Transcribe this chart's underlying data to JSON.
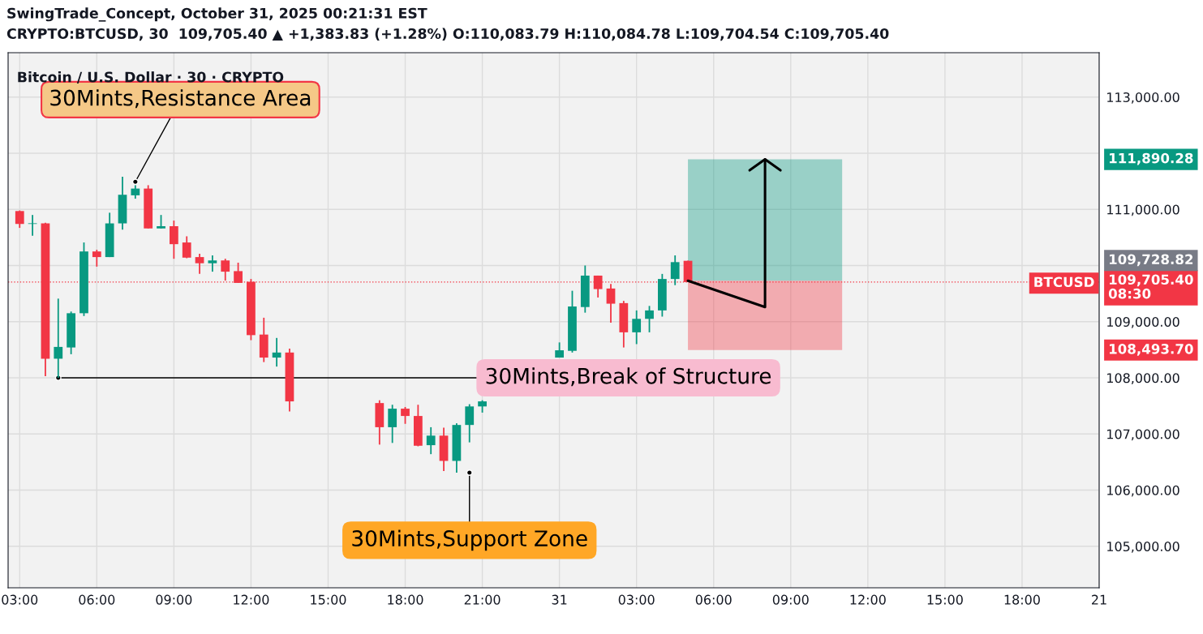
{
  "chart_data": {
    "type": "candlestick",
    "title": "SwingTrade_Concept, October 31, 2025 00:21:31 EST",
    "subtitle": "CRYPTO:BTCUSD, 30  109,705.40 ▲ +1,383.83 (+1.28%) O:110,083.79 H:110,084.78 L:109,704.54 C:109,705.40",
    "x": [
      "2025-10-30T03:00",
      "2025-10-30T03:30",
      "2025-10-30T04:00",
      "2025-10-30T04:30",
      "2025-10-30T05:00",
      "2025-10-30T05:30",
      "2025-10-30T06:00",
      "2025-10-30T06:30",
      "2025-10-30T07:00",
      "2025-10-30T07:30",
      "2025-10-30T08:00",
      "2025-10-30T08:30",
      "2025-10-30T09:00",
      "2025-10-30T09:30",
      "2025-10-30T10:00",
      "2025-10-30T10:30",
      "2025-10-30T11:00",
      "2025-10-30T11:30",
      "2025-10-30T12:00",
      "2025-10-30T12:30",
      "2025-10-30T13:00",
      "2025-10-30T13:30",
      "2025-10-30T17:00",
      "2025-10-30T17:30",
      "2025-10-30T18:00",
      "2025-10-30T18:30",
      "2025-10-30T19:00",
      "2025-10-30T19:30",
      "2025-10-30T20:00",
      "2025-10-30T20:30",
      "2025-10-30T21:00",
      "2025-10-31T00:00",
      "2025-10-31T00:30",
      "2025-10-31T01:00",
      "2025-10-31T01:30",
      "2025-10-31T02:00",
      "2025-10-31T02:30",
      "2025-10-31T03:00",
      "2025-10-31T03:30",
      "2025-10-31T04:00",
      "2025-10-31T04:30",
      "2025-10-31T05:00"
    ],
    "ohlc": [
      [
        110970,
        110980,
        110670,
        110740
      ],
      [
        110740,
        110900,
        110530,
        110750
      ],
      [
        110750,
        110760,
        108030,
        108340
      ],
      [
        108340,
        109410,
        108000,
        108550
      ],
      [
        108540,
        109180,
        108420,
        109150
      ],
      [
        109150,
        110410,
        109100,
        110250
      ],
      [
        110250,
        110280,
        109980,
        110150
      ],
      [
        110150,
        110940,
        110150,
        110750
      ],
      [
        110750,
        111580,
        110640,
        111260
      ],
      [
        111250,
        111430,
        111190,
        111370
      ],
      [
        111370,
        111430,
        110660,
        110660
      ],
      [
        110660,
        110900,
        110660,
        110700
      ],
      [
        110700,
        110800,
        110120,
        110380
      ],
      [
        110410,
        110520,
        110130,
        110140
      ],
      [
        110150,
        110210,
        109850,
        110040
      ],
      [
        110040,
        110180,
        109890,
        110090
      ],
      [
        110090,
        110120,
        109730,
        109890
      ],
      [
        109900,
        110050,
        109690,
        109690
      ],
      [
        109710,
        109760,
        108670,
        108760
      ],
      [
        108770,
        109070,
        108280,
        108360
      ],
      [
        108360,
        108710,
        108200,
        108450
      ],
      [
        108450,
        108520,
        107400,
        107580
      ],
      [
        107550,
        107600,
        106810,
        107120
      ],
      [
        107120,
        107520,
        106840,
        107450
      ],
      [
        107450,
        107480,
        107180,
        107320
      ],
      [
        107320,
        107520,
        106780,
        106790
      ],
      [
        106800,
        107120,
        106640,
        106970
      ],
      [
        106970,
        107110,
        106340,
        106520
      ],
      [
        106520,
        107190,
        106310,
        107160
      ],
      [
        107160,
        107530,
        106850,
        107490
      ],
      [
        107490,
        107600,
        107380,
        107580
      ],
      [
        108360,
        108630,
        108360,
        108490
      ],
      [
        108480,
        109550,
        108450,
        109270
      ],
      [
        109260,
        110000,
        109160,
        109820
      ],
      [
        109820,
        109820,
        109430,
        109580
      ],
      [
        109590,
        109670,
        108980,
        109320
      ],
      [
        109330,
        109370,
        108540,
        108810
      ],
      [
        108810,
        109200,
        108600,
        109050
      ],
      [
        109050,
        109280,
        108810,
        109200
      ],
      [
        109200,
        109850,
        109090,
        109760
      ],
      [
        109760,
        110180,
        109650,
        110060
      ],
      [
        110083.79,
        110084.78,
        109704.54,
        109705.4
      ]
    ],
    "xlim": [
      "2025-10-30T02:33",
      "2025-10-31T21:00"
    ],
    "xticks": [
      {
        "value": "2025-10-30T03:00",
        "label": "03:00"
      },
      {
        "value": "2025-10-30T06:00",
        "label": "06:00"
      },
      {
        "value": "2025-10-30T09:00",
        "label": "09:00"
      },
      {
        "value": "2025-10-30T12:00",
        "label": "12:00"
      },
      {
        "value": "2025-10-30T15:00",
        "label": "15:00"
      },
      {
        "value": "2025-10-30T18:00",
        "label": "18:00"
      },
      {
        "value": "2025-10-30T21:00",
        "label": "21:00"
      },
      {
        "value": "2025-10-31T00:00",
        "label": "31"
      },
      {
        "value": "2025-10-31T03:00",
        "label": "03:00"
      },
      {
        "value": "2025-10-31T06:00",
        "label": "06:00"
      },
      {
        "value": "2025-10-31T09:00",
        "label": "09:00"
      },
      {
        "value": "2025-10-31T12:00",
        "label": "12:00"
      },
      {
        "value": "2025-10-31T15:00",
        "label": "15:00"
      },
      {
        "value": "2025-10-31T18:00",
        "label": "18:00"
      },
      {
        "value": "2025-10-31T21:00",
        "label": "21"
      }
    ],
    "ylim": [
      104260,
      113790
    ],
    "yticks": [
      {
        "value": 105000,
        "label": "105,000.00"
      },
      {
        "value": 106000,
        "label": "106,000.00"
      },
      {
        "value": 107000,
        "label": "107,000.00"
      },
      {
        "value": 108000,
        "label": "108,000.00"
      },
      {
        "value": 109000,
        "label": "109,000.00"
      },
      {
        "value": 110000,
        "label": null
      },
      {
        "value": 111000,
        "label": "111,000.00"
      },
      {
        "value": 112000,
        "label": null
      },
      {
        "value": 113000,
        "label": "113,000.00"
      }
    ],
    "grid": true,
    "bands": [
      {
        "axis": "y",
        "from": 109728.82,
        "to": 111890.28,
        "color": "#089981"
      },
      {
        "axis": "y",
        "from": 108493.7,
        "to": 109728.82,
        "color": "#f23645"
      }
    ],
    "ref_lines": [
      {
        "axis": "y",
        "value": 109705.4,
        "label": "109,705.40",
        "color": "#f23645",
        "line_style": "dotted"
      }
    ],
    "annotations": [
      "Bitcoin / U.S. Dollar · 30 · CRYPTO",
      "BTCUSD",
      "08:30",
      "111,890.28",
      "109,728.82",
      "108,493.70",
      {
        "text": "30Mints,Resistance Area",
        "x": "2025-10-30T07:30",
        "y": 111490
      },
      {
        "text": "30Mints,Break of Structure",
        "x": "2025-10-30T04:30",
        "y": 108000
      },
      {
        "text": "30Mints,Support Zone",
        "x": "2025-10-30T20:30",
        "y": 106310
      }
    ]
  }
}
